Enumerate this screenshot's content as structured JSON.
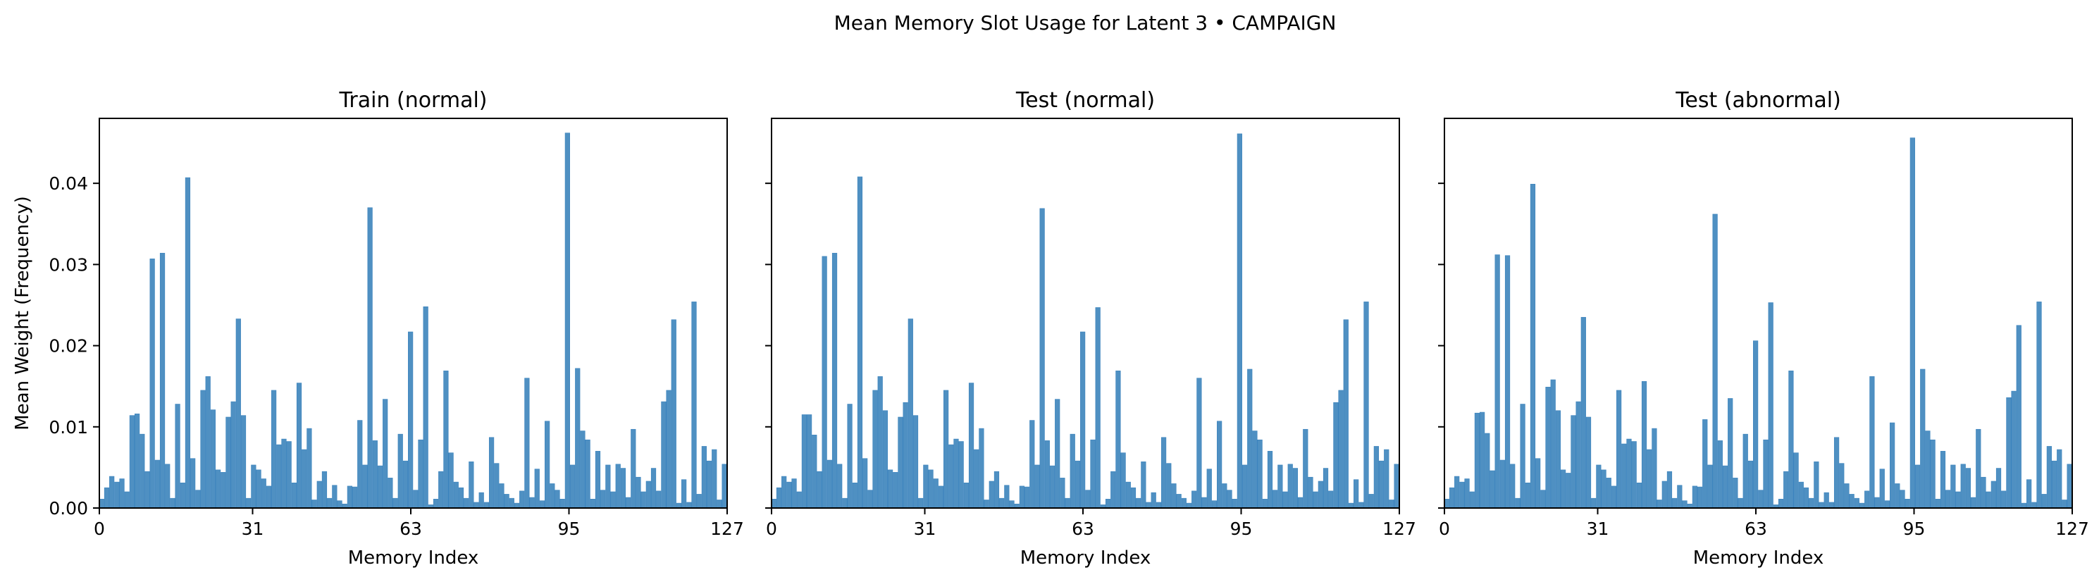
{
  "figure": {
    "suptitle": "Mean Memory Slot Usage for Latent 3 • CAMPAIGN",
    "bar_color": "#4f90c2",
    "bar_edge_color": "#3b83bd"
  },
  "chart_data": [
    {
      "type": "bar",
      "title": "Train (normal)",
      "xlabel": "Memory Index",
      "ylabel": "Mean Weight (Frequency)",
      "xlim": [
        0,
        127
      ],
      "ylim": [
        0,
        0.048
      ],
      "xticks": [
        0,
        31,
        63,
        95,
        127
      ],
      "yticks": [
        0.0,
        0.01,
        0.02,
        0.03,
        0.04
      ],
      "ytick_labels": [
        "0.00",
        "0.01",
        "0.02",
        "0.03",
        "0.04"
      ],
      "values": [
        0.0011,
        0.0025,
        0.0039,
        0.0032,
        0.0036,
        0.002,
        0.0114,
        0.0116,
        0.0091,
        0.0045,
        0.0307,
        0.0059,
        0.0314,
        0.0054,
        0.0012,
        0.0128,
        0.0031,
        0.0407,
        0.0061,
        0.0022,
        0.0145,
        0.0162,
        0.0121,
        0.0047,
        0.0044,
        0.0112,
        0.0131,
        0.0233,
        0.0114,
        0.0012,
        0.0053,
        0.0047,
        0.0036,
        0.0027,
        0.0145,
        0.0078,
        0.0085,
        0.0082,
        0.0031,
        0.0154,
        0.0072,
        0.0098,
        0.001,
        0.0033,
        0.0045,
        0.0012,
        0.0028,
        0.0009,
        0.0005,
        0.0027,
        0.0026,
        0.0108,
        0.0053,
        0.037,
        0.0083,
        0.0052,
        0.0134,
        0.0037,
        0.0012,
        0.0091,
        0.0058,
        0.0217,
        0.0022,
        0.0084,
        0.0248,
        0.0004,
        0.0011,
        0.0045,
        0.0169,
        0.0068,
        0.0032,
        0.0025,
        0.0012,
        0.0057,
        0.0007,
        0.0019,
        0.0007,
        0.0087,
        0.0055,
        0.003,
        0.0017,
        0.0012,
        0.0006,
        0.0021,
        0.016,
        0.0013,
        0.0048,
        0.0009,
        0.0107,
        0.003,
        0.0022,
        0.0011,
        0.0462,
        0.0053,
        0.0172,
        0.0095,
        0.0084,
        0.0011,
        0.007,
        0.0022,
        0.0053,
        0.002,
        0.0054,
        0.0049,
        0.0013,
        0.0097,
        0.0038,
        0.002,
        0.0033,
        0.0049,
        0.0021,
        0.0131,
        0.0145,
        0.0232,
        0.0006,
        0.0035,
        0.0007,
        0.0254,
        0.0017,
        0.0076,
        0.0058,
        0.0072,
        0.001,
        0.0054
      ]
    },
    {
      "type": "bar",
      "title": "Test (normal)",
      "xlabel": "Memory Index",
      "ylabel": "",
      "xlim": [
        0,
        127
      ],
      "ylim": [
        0,
        0.048
      ],
      "xticks": [
        0,
        31,
        63,
        95,
        127
      ],
      "yticks": [
        0.0,
        0.01,
        0.02,
        0.03,
        0.04
      ],
      "ytick_labels": [
        "",
        "",
        "",
        "",
        ""
      ],
      "values": [
        0.0011,
        0.0025,
        0.0039,
        0.0032,
        0.0036,
        0.002,
        0.0115,
        0.0115,
        0.009,
        0.0045,
        0.031,
        0.0059,
        0.0314,
        0.0054,
        0.0012,
        0.0128,
        0.0031,
        0.0408,
        0.0061,
        0.0022,
        0.0145,
        0.0162,
        0.012,
        0.0047,
        0.0044,
        0.0112,
        0.013,
        0.0233,
        0.0114,
        0.0012,
        0.0053,
        0.0047,
        0.0036,
        0.0027,
        0.0145,
        0.0078,
        0.0085,
        0.0082,
        0.0031,
        0.0154,
        0.0072,
        0.0098,
        0.001,
        0.0033,
        0.0045,
        0.0012,
        0.0028,
        0.0009,
        0.0005,
        0.0027,
        0.0026,
        0.0108,
        0.0053,
        0.0369,
        0.0083,
        0.0052,
        0.0134,
        0.0037,
        0.0012,
        0.0091,
        0.0058,
        0.0217,
        0.0022,
        0.0084,
        0.0247,
        0.0004,
        0.0011,
        0.0045,
        0.0169,
        0.0068,
        0.0032,
        0.0025,
        0.0012,
        0.0057,
        0.0007,
        0.0019,
        0.0007,
        0.0087,
        0.0055,
        0.003,
        0.0017,
        0.0012,
        0.0006,
        0.0021,
        0.016,
        0.0013,
        0.0048,
        0.0009,
        0.0107,
        0.003,
        0.0022,
        0.0011,
        0.0461,
        0.0053,
        0.0171,
        0.0095,
        0.0084,
        0.0011,
        0.007,
        0.0022,
        0.0053,
        0.002,
        0.0054,
        0.0049,
        0.0013,
        0.0097,
        0.0038,
        0.002,
        0.0033,
        0.0049,
        0.0021,
        0.013,
        0.0145,
        0.0232,
        0.0006,
        0.0035,
        0.0007,
        0.0254,
        0.0017,
        0.0076,
        0.0058,
        0.0072,
        0.001,
        0.0054
      ]
    },
    {
      "type": "bar",
      "title": "Test (abnormal)",
      "xlabel": "Memory Index",
      "ylabel": "",
      "xlim": [
        0,
        127
      ],
      "ylim": [
        0,
        0.048
      ],
      "xticks": [
        0,
        31,
        63,
        95,
        127
      ],
      "yticks": [
        0.0,
        0.01,
        0.02,
        0.03,
        0.04
      ],
      "ytick_labels": [
        "",
        "",
        "",
        "",
        ""
      ],
      "values": [
        0.0011,
        0.0025,
        0.0039,
        0.0032,
        0.0036,
        0.002,
        0.0117,
        0.0118,
        0.0092,
        0.0046,
        0.0312,
        0.0059,
        0.0311,
        0.0054,
        0.0012,
        0.0128,
        0.0031,
        0.0399,
        0.0061,
        0.0022,
        0.0149,
        0.0158,
        0.012,
        0.0047,
        0.0043,
        0.0114,
        0.0131,
        0.0235,
        0.0112,
        0.0012,
        0.0053,
        0.0047,
        0.0037,
        0.0027,
        0.0145,
        0.0079,
        0.0085,
        0.0082,
        0.0031,
        0.0156,
        0.0072,
        0.0098,
        0.001,
        0.0033,
        0.0045,
        0.0012,
        0.0028,
        0.0009,
        0.0005,
        0.0027,
        0.0026,
        0.0109,
        0.0053,
        0.0362,
        0.0083,
        0.0052,
        0.0135,
        0.0037,
        0.0012,
        0.0091,
        0.0058,
        0.0206,
        0.0022,
        0.0084,
        0.0253,
        0.0004,
        0.0011,
        0.0045,
        0.0169,
        0.0068,
        0.0032,
        0.0025,
        0.0012,
        0.0057,
        0.0007,
        0.0019,
        0.0007,
        0.0087,
        0.0055,
        0.003,
        0.0017,
        0.0012,
        0.0006,
        0.0021,
        0.0162,
        0.0013,
        0.0048,
        0.0009,
        0.0105,
        0.003,
        0.0022,
        0.0011,
        0.0456,
        0.0053,
        0.0171,
        0.0095,
        0.0084,
        0.0011,
        0.007,
        0.0022,
        0.0053,
        0.002,
        0.0054,
        0.0049,
        0.0013,
        0.0097,
        0.0038,
        0.002,
        0.0033,
        0.0049,
        0.0021,
        0.0136,
        0.0144,
        0.0225,
        0.0006,
        0.0035,
        0.0007,
        0.0254,
        0.0017,
        0.0076,
        0.0058,
        0.0072,
        0.001,
        0.0054
      ]
    }
  ]
}
